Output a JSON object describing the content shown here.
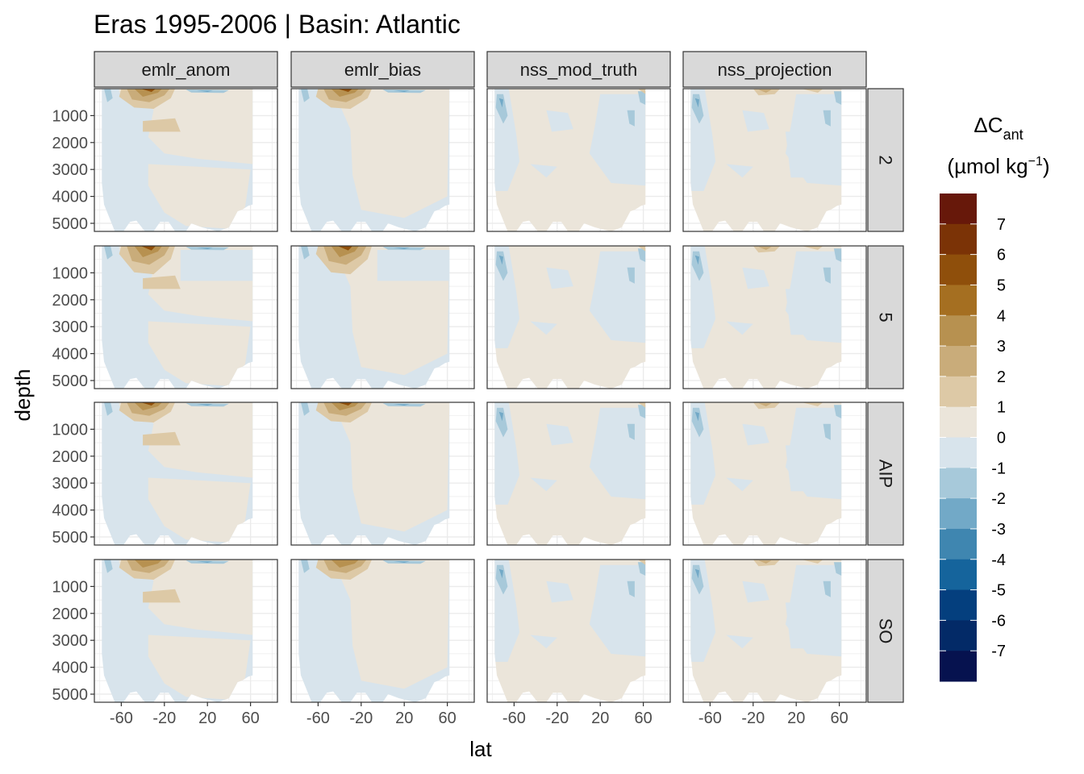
{
  "chart_data": {
    "type": "heatmap",
    "title": "Eras 1995-2006 | Basin: Atlantic",
    "xlabel": "lat",
    "ylabel": "depth",
    "x_ticks": [
      -60,
      -20,
      20,
      60
    ],
    "y_ticks": [
      1000,
      2000,
      3000,
      4000,
      5000
    ],
    "xlim": [
      -85,
      85
    ],
    "ylim": [
      5300,
      0
    ],
    "y_reversed": true,
    "grid": true,
    "facet_cols": [
      "emlr_anom",
      "emlr_bias",
      "nss_mod_truth",
      "nss_projection"
    ],
    "facet_rows": [
      "2",
      "5",
      "AIP",
      "SO"
    ],
    "legend": {
      "title_main": "ΔC",
      "title_sub": "ant",
      "units_pre": "(µmol kg",
      "units_sup": "−1",
      "units_post": ")",
      "placement": "right",
      "labels": [
        "7",
        "6",
        "5",
        "4",
        "3",
        "2",
        "1",
        "0",
        "-1",
        "-2",
        "-3",
        "-4",
        "-5",
        "-6",
        "-7"
      ],
      "colors": [
        "#67180a",
        "#7b3306",
        "#8f4f0b",
        "#a56f21",
        "#b79150",
        "#c9ac7a",
        "#ddc9a6",
        "#ebe5da",
        "#d8e4ec",
        "#a7c9da",
        "#72a9c7",
        "#3f86b0",
        "#15649c",
        "#043f7e",
        "#032a67",
        "#06124f"
      ]
    },
    "dominant_class": {
      "emlr_anom": {
        "2": "0 to 1",
        "5": "0 to 1",
        "AIP": "0 to 1",
        "SO": "0 to 1"
      },
      "emlr_bias": {
        "2": "0 to 1",
        "5": "0 to 1",
        "AIP": "0 to 1",
        "SO": "0 to 1"
      },
      "nss_mod_truth": {
        "2": "0 to 1",
        "5": "0 to 1",
        "AIP": "0 to 1",
        "SO": "0 to 1"
      },
      "nss_projection": {
        "2": "0 to 1",
        "5": "0 to 1",
        "AIP": "0 to 1",
        "SO": "0 to 1"
      }
    }
  }
}
